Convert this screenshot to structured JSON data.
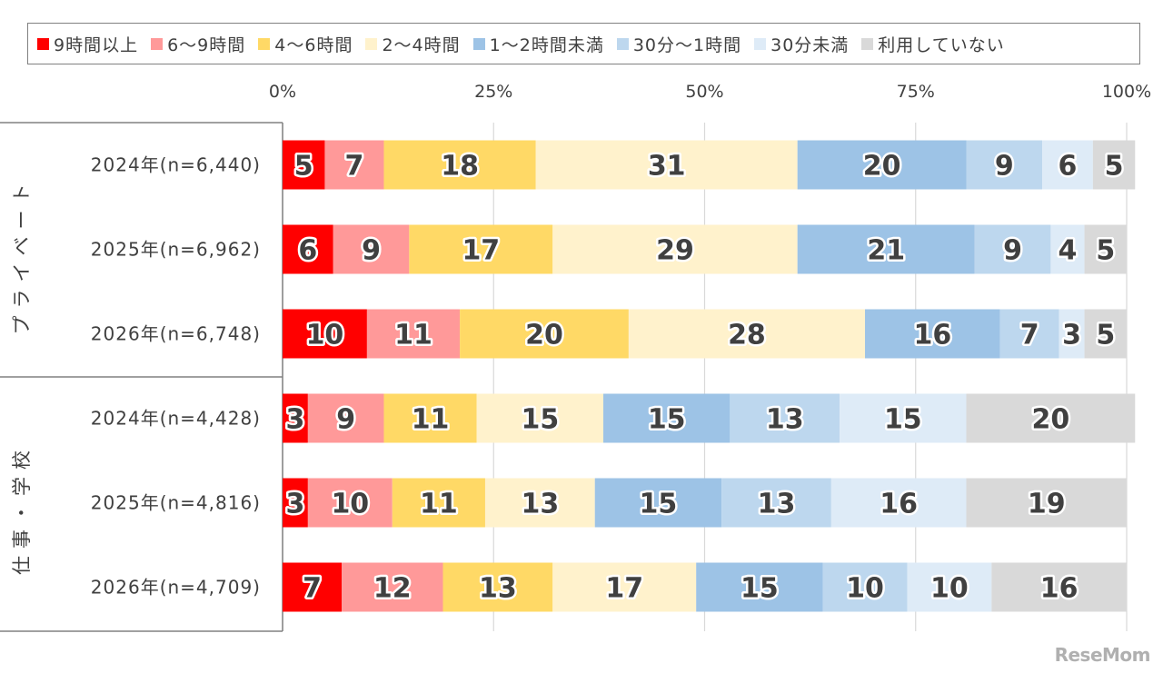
{
  "chart_data": {
    "type": "bar",
    "orientation": "horizontal",
    "stacked": true,
    "xlim": [
      0,
      100
    ],
    "x_ticks": [
      "0%",
      "25%",
      "50%",
      "75%",
      "100%"
    ],
    "grid": true,
    "legend_position": "top",
    "series": [
      {
        "name": "9時間以上",
        "color": "#ff0000"
      },
      {
        "name": "6〜9時間",
        "color": "#ff9999"
      },
      {
        "name": "4〜6時間",
        "color": "#ffd966"
      },
      {
        "name": "2〜4時間",
        "color": "#fff2cc"
      },
      {
        "name": "1〜2時間未満",
        "color": "#9dc3e6"
      },
      {
        "name": "30分〜1時間",
        "color": "#bdd7ee"
      },
      {
        "name": "30分未満",
        "color": "#deebf7"
      },
      {
        "name": "利用していない",
        "color": "#d9d9d9"
      }
    ],
    "groups": [
      {
        "label": "プライベート",
        "rows": [
          {
            "label": "2024年(n=6,440)",
            "values": [
              5,
              7,
              18,
              31,
              20,
              9,
              6,
              5
            ]
          },
          {
            "label": "2025年(n=6,962)",
            "values": [
              6,
              9,
              17,
              29,
              21,
              9,
              4,
              5
            ]
          },
          {
            "label": "2026年(n=6,748)",
            "values": [
              10,
              11,
              20,
              28,
              16,
              7,
              3,
              5
            ]
          }
        ]
      },
      {
        "label": "仕事・学校",
        "rows": [
          {
            "label": "2024年(n=4,428)",
            "values": [
              3,
              9,
              11,
              15,
              15,
              13,
              15,
              20
            ]
          },
          {
            "label": "2025年(n=4,816)",
            "values": [
              3,
              10,
              11,
              13,
              15,
              13,
              16,
              19
            ]
          },
          {
            "label": "2026年(n=4,709)",
            "values": [
              7,
              12,
              13,
              17,
              15,
              10,
              10,
              16
            ]
          }
        ]
      }
    ]
  },
  "brand": "ReseMom"
}
